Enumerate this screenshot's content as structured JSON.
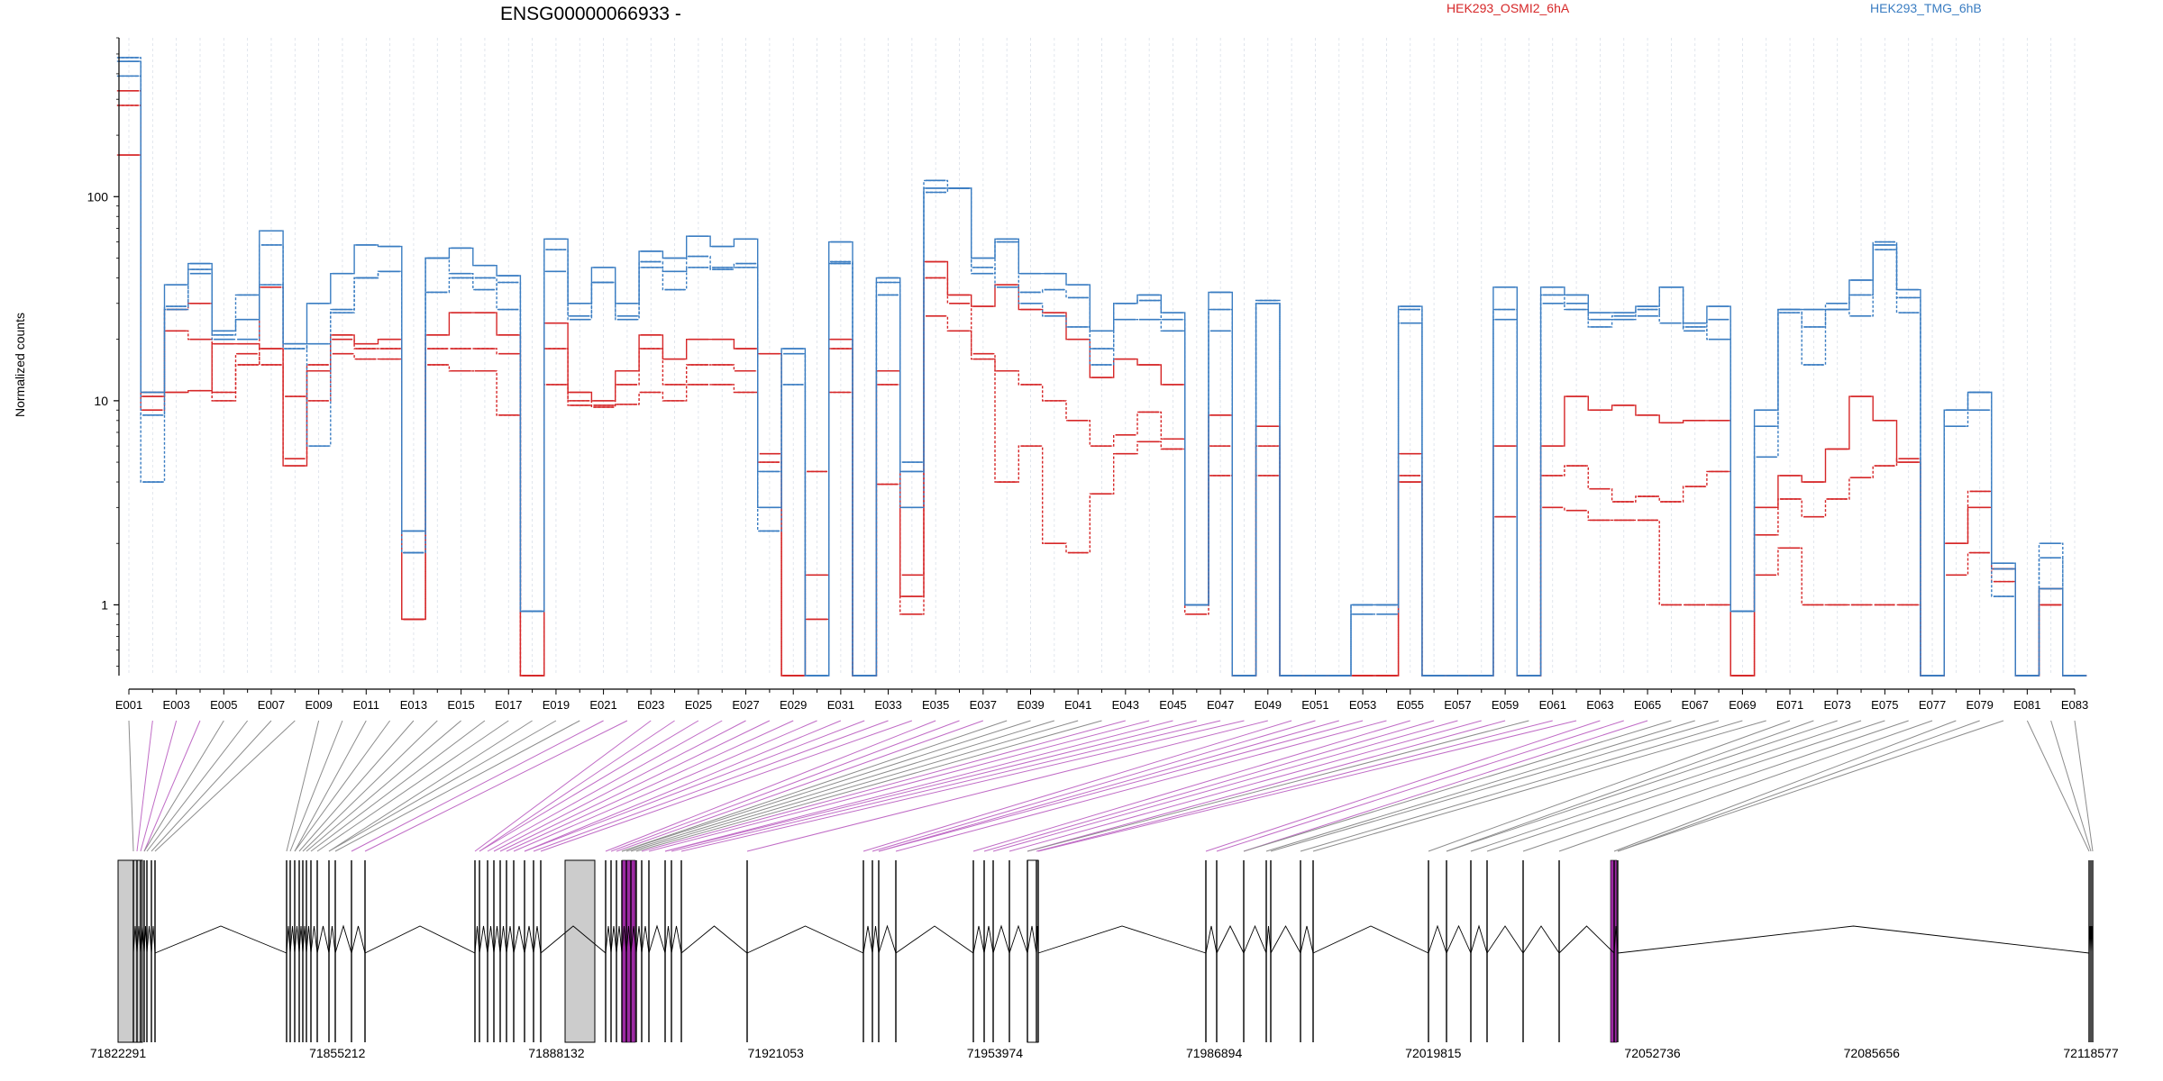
{
  "chart_data": {
    "type": "line",
    "title": "ENSG00000066933 -",
    "ylabel": "Normalized counts",
    "y_scale": "log",
    "ylim": [
      0.45,
      600
    ],
    "yticks": [
      1,
      10,
      100
    ],
    "ytick_labels": [
      "1",
      "10",
      "100"
    ],
    "grid": "vertical dashed lines at each exon",
    "legend": "top, inline text",
    "categories": [
      "E001",
      "E002",
      "E003",
      "E004",
      "E005",
      "E006",
      "E007",
      "E008",
      "E009",
      "E010",
      "E011",
      "E012",
      "E013",
      "E014",
      "E015",
      "E016",
      "E017",
      "E018",
      "E019",
      "E020",
      "E021",
      "E022",
      "E023",
      "E024",
      "E025",
      "E026",
      "E027",
      "E028",
      "E029",
      "E030",
      "E031",
      "E032",
      "E033",
      "E034",
      "E035",
      "E036",
      "E037",
      "E038",
      "E039",
      "E040",
      "E041",
      "E042",
      "E043",
      "E044",
      "E045",
      "E046",
      "E047",
      "E048",
      "E049",
      "E050",
      "E051",
      "E052",
      "E053",
      "E054",
      "E055",
      "E056",
      "E057",
      "E058",
      "E059",
      "E060",
      "E061",
      "E062",
      "E063",
      "E064",
      "E065",
      "E066",
      "E067",
      "E068",
      "E069",
      "E070",
      "E071",
      "E072",
      "E073",
      "E074",
      "E075",
      "E076",
      "E077",
      "E078",
      "E079",
      "E080",
      "E081",
      "E082",
      "E083"
    ],
    "xtick_labels": [
      "E001",
      "E003",
      "E005",
      "E007",
      "E009",
      "E011",
      "E013",
      "E015",
      "E017",
      "E019",
      "E021",
      "E023",
      "E025",
      "E027",
      "E029",
      "E031",
      "E033",
      "E035",
      "E037",
      "E039",
      "E041",
      "E043",
      "E045",
      "E047",
      "E049",
      "E051",
      "E053",
      "E055",
      "E057",
      "E059",
      "E061",
      "E063",
      "E065",
      "E067",
      "E069",
      "E071",
      "E073",
      "E075",
      "E077",
      "E079",
      "E081",
      "E083"
    ],
    "series": [
      {
        "name": "HEK293_OSMI2_6hA",
        "color": "#d62728",
        "dash": false,
        "values": [
          160,
          10.5,
          11,
          11.2,
          19,
          19,
          18,
          4.8,
          14,
          21,
          19,
          20,
          0.85,
          21,
          27,
          27,
          21,
          0.45,
          24,
          11,
          10,
          14,
          21,
          16,
          20,
          20,
          18,
          17,
          0.45,
          0.85,
          20,
          0.45,
          14,
          1.1,
          48,
          33,
          29,
          37,
          28,
          27,
          20,
          13,
          16,
          15,
          12,
          1,
          8.5,
          0.45,
          7.5,
          0.45,
          0.45,
          0.45,
          0.45,
          0.45,
          4,
          0.45,
          0.45,
          0.45,
          6,
          0.45,
          6,
          10.5,
          9,
          9.5,
          8.5,
          7.8,
          8,
          8,
          0.45,
          3,
          4.3,
          4,
          5.8,
          10.5,
          8,
          5,
          0.45,
          2,
          3,
          1.5,
          0.45,
          1.2,
          0.45
        ]
      },
      {
        "name": "HEK293_OSMI2_6hA",
        "color": "#d62728",
        "dash": true,
        "values": [
          280,
          9,
          28,
          30,
          11,
          15,
          36,
          10.5,
          10,
          17,
          16,
          16,
          0.85,
          18,
          18,
          18,
          17,
          0.45,
          18,
          10,
          9.3,
          12,
          18,
          12,
          15,
          15,
          14,
          5.5,
          0.45,
          4.5,
          18,
          0.45,
          12,
          1.4,
          40,
          30,
          16,
          14,
          12,
          10,
          8,
          6,
          6.8,
          8.8,
          6.5,
          1,
          6,
          0.45,
          6,
          0.45,
          0.45,
          0.45,
          0.45,
          0.45,
          5.5,
          0.45,
          0.45,
          0.45,
          2.7,
          0.45,
          4.3,
          4.8,
          3.7,
          3.2,
          3.4,
          3.2,
          3.8,
          4.5,
          0.45,
          2.2,
          3.3,
          2.7,
          3.3,
          4.2,
          4.8,
          5.2,
          0.45,
          2,
          3.6,
          1.5,
          0.45,
          1,
          0.45
        ]
      },
      {
        "name": "HEK293_OSMI2_6hA",
        "color": "#d62728",
        "dash": true,
        "values": [
          330,
          11,
          22,
          20,
          10,
          17,
          15,
          5.2,
          15,
          20,
          18,
          18,
          0.85,
          15,
          14,
          14,
          8.5,
          0.45,
          12,
          9.5,
          9.5,
          9.6,
          11,
          10,
          12,
          12,
          11,
          5,
          0.45,
          1.4,
          11,
          0.45,
          3.9,
          0.9,
          26,
          22,
          17,
          4,
          6,
          2,
          1.8,
          3.5,
          5.5,
          6.3,
          5.8,
          0.9,
          4.3,
          0.45,
          4.3,
          0.45,
          0.45,
          0.45,
          0.45,
          0.45,
          4.3,
          0.45,
          0.45,
          0.45,
          2.7,
          0.45,
          3,
          2.9,
          2.6,
          2.6,
          2.6,
          1,
          1,
          1,
          0.45,
          1.4,
          1.9,
          1,
          1,
          1,
          1,
          1,
          0.45,
          1.4,
          1.8,
          1.3,
          0.45,
          1,
          0.45
        ]
      },
      {
        "name": "HEK293_TMG_6hB",
        "color": "#3a7dc2",
        "dash": false,
        "values": [
          460,
          11,
          37,
          47,
          22,
          25,
          68,
          19,
          30,
          42,
          58,
          57,
          2.3,
          50,
          56,
          46,
          41,
          0.93,
          62,
          30,
          45,
          30,
          54,
          50,
          64,
          57,
          62,
          3,
          18,
          0.45,
          60,
          0.45,
          40,
          4.5,
          110,
          110,
          50,
          62,
          42,
          42,
          37,
          22,
          30,
          33,
          27,
          1,
          34,
          0.45,
          30,
          0.45,
          0.45,
          0.45,
          1,
          1,
          29,
          0.45,
          0.45,
          0.45,
          36,
          0.45,
          36,
          33,
          27,
          27,
          29,
          36,
          24,
          29,
          0.93,
          9,
          28,
          28,
          28,
          39,
          58,
          35,
          0.45,
          9,
          11,
          1.6,
          0.45,
          1.2,
          0.45
        ]
      },
      {
        "name": "HEK293_TMG_6hB",
        "color": "#3a7dc2",
        "dash": true,
        "values": [
          480,
          4,
          29,
          44,
          21,
          33,
          58,
          18,
          19,
          28,
          40,
          43,
          1.8,
          34,
          40,
          40,
          28,
          0.93,
          55,
          25,
          38,
          25,
          45,
          35,
          45,
          44,
          45,
          2.3,
          12,
          0.45,
          48,
          0.45,
          33,
          3,
          120,
          110,
          45,
          36,
          30,
          26,
          23,
          15,
          25,
          25,
          22,
          1,
          28,
          0.45,
          31,
          0.45,
          0.45,
          0.45,
          0.9,
          0.9,
          24,
          0.45,
          0.45,
          0.45,
          28,
          0.45,
          33,
          30,
          25,
          26,
          26,
          36,
          23,
          20,
          0.93,
          5.3,
          27,
          15,
          28,
          26,
          60,
          27,
          0.45,
          7.5,
          9,
          1.1,
          0.45,
          1.7,
          0.45
        ]
      },
      {
        "name": "HEK293_TMG_6hB",
        "color": "#3a7dc2",
        "dash": true,
        "values": [
          390,
          8.5,
          28,
          42,
          20,
          20,
          37,
          19,
          6,
          27,
          40,
          43,
          1.8,
          50,
          42,
          35,
          38,
          0.93,
          43,
          26,
          38,
          26,
          48,
          43,
          51,
          45,
          47,
          4.5,
          17,
          0.45,
          47,
          0.45,
          38,
          5,
          105,
          110,
          42,
          60,
          34,
          35,
          32,
          18,
          30,
          31,
          25,
          1,
          22,
          0.45,
          30,
          0.45,
          0.45,
          0.45,
          1,
          1,
          28,
          0.45,
          0.45,
          0.45,
          25,
          0.45,
          30,
          28,
          23,
          25,
          28,
          24,
          22,
          25,
          0.93,
          7.5,
          28,
          23,
          30,
          33,
          55,
          32,
          0.45,
          9,
          11,
          1.5,
          0.45,
          2,
          0.45
        ]
      }
    ],
    "exon_axis_label_note": "gene-model genomic coordinates",
    "genomic_ticks": [
      "71822291",
      "71855212",
      "71888132",
      "71921053",
      "71953974",
      "71986894",
      "72019815",
      "72052736",
      "72085656",
      "72118577"
    ]
  }
}
